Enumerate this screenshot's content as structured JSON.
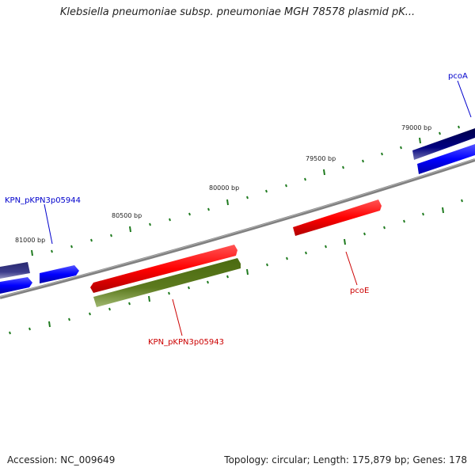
{
  "title": "Klebsiella pneumoniae subsp. pneumoniae MGH 78578 plasmid pK...",
  "footer": {
    "accession": "Accession: NC_009649",
    "summary": "Topology: circular; Length: 175,879 bp; Genes: 178"
  },
  "ticks": [
    {
      "label": "79000 bp"
    },
    {
      "label": "79500 bp"
    },
    {
      "label": "80000 bp"
    },
    {
      "label": "80500 bp"
    },
    {
      "label": "81000 bp"
    }
  ],
  "genes": [
    {
      "label": "pcoA",
      "color": "#0000cc"
    },
    {
      "label": "KPN_pKPN3p05944",
      "color": "#0000cc"
    },
    {
      "label": "pcoE",
      "color": "#cc0000"
    },
    {
      "label": "KPN_pKPN3p05943",
      "color": "#cc0000"
    }
  ],
  "colors": {
    "backbone": "#7a7a7a",
    "tick": "#1e7a1e",
    "red_feature": "#ff0000",
    "green_feature": "#5c7a1e",
    "blue_feature": "#0000ff",
    "navy_feature": "#000080",
    "slate_feature": "#3c3c8c"
  }
}
